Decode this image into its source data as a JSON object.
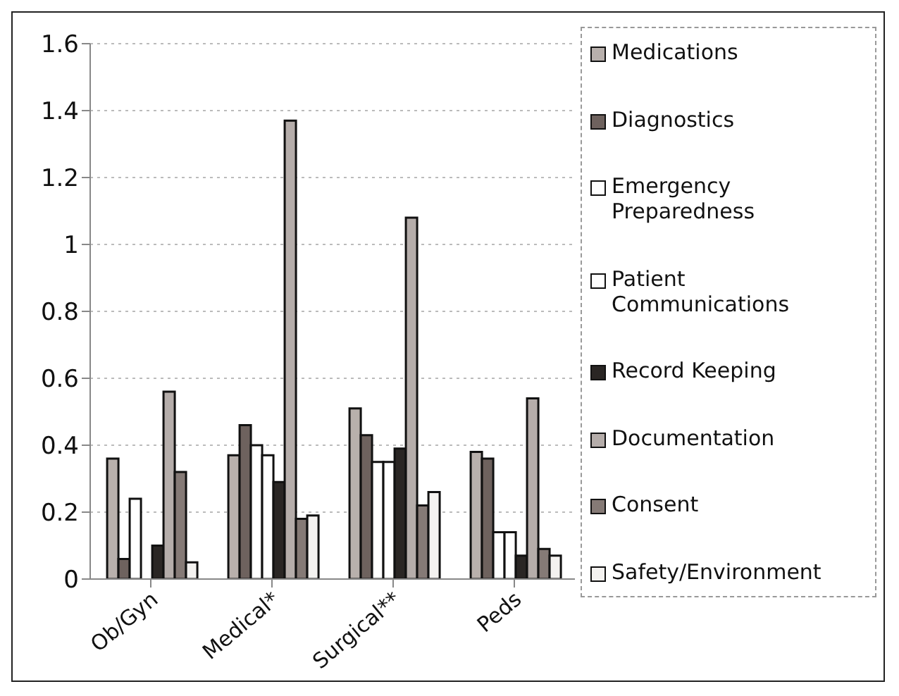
{
  "chart_data": {
    "type": "bar",
    "categories": [
      "Ob/Gyn",
      "Medical*",
      "Surgical**",
      "Peds"
    ],
    "series": [
      {
        "name": "Medications",
        "color": "#b8b0ac",
        "values": [
          0.36,
          0.37,
          0.51,
          0.38
        ]
      },
      {
        "name": "Diagnostics",
        "color": "#6e625e",
        "values": [
          0.06,
          0.46,
          0.43,
          0.36
        ]
      },
      {
        "name": "Emergency Preparedness",
        "color": "#ffffff",
        "values": [
          0.24,
          0.4,
          0.35,
          0.14
        ]
      },
      {
        "name": "Patient Communications",
        "color": "#ffffff",
        "values": [
          0,
          0.37,
          0.35,
          0.14
        ]
      },
      {
        "name": "Record Keeping",
        "color": "#2a2624",
        "values": [
          0.1,
          0.29,
          0.39,
          0.07
        ]
      },
      {
        "name": "Documentation",
        "color": "#b5adaa",
        "values": [
          0.56,
          1.37,
          1.08,
          0.54
        ]
      },
      {
        "name": "Consent",
        "color": "#857a76",
        "values": [
          0.32,
          0.18,
          0.22,
          0.09
        ]
      },
      {
        "name": "Safety/Environment",
        "color": "#f4f2f0",
        "values": [
          0.05,
          0.19,
          0.26,
          0.07
        ]
      }
    ],
    "ylim": [
      0,
      1.6
    ],
    "yticks": [
      0,
      0.2,
      0.4,
      0.6,
      0.8,
      1,
      1.2,
      1.4,
      1.6
    ],
    "grid": "y",
    "legend": "right"
  }
}
